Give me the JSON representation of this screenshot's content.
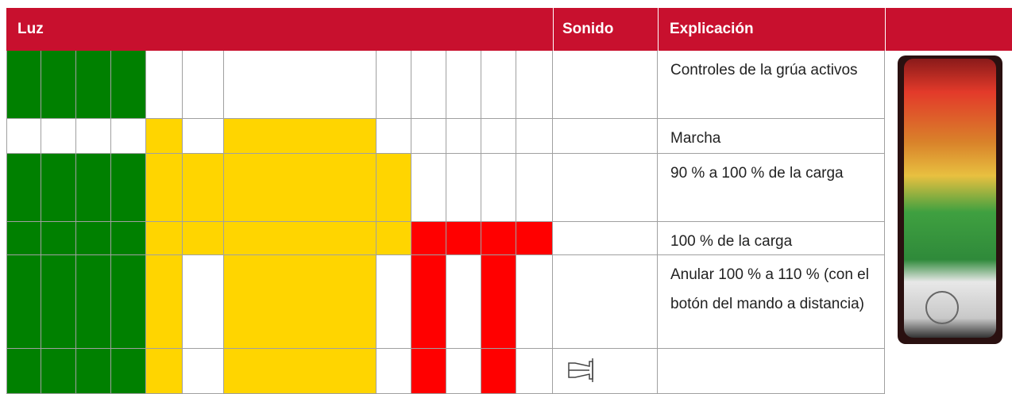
{
  "table": {
    "header": [
      "Luz",
      "Sonido",
      "Explicación"
    ],
    "rows": [
      {
        "lights": [
          "#008000",
          "#008000",
          "#008000",
          "#008000",
          "#ffffff",
          "#ffffff",
          "#ffffff",
          "#ffffff",
          "#ffffff",
          "#ffffff",
          "#ffffff",
          "#ffffff"
        ],
        "explanation": "Controles de la grúa activos"
      },
      {
        "lights": [
          "#ffffff",
          "#ffffff",
          "#ffffff",
          "#ffffff",
          "#ffd500",
          "#ffffff",
          "#ffd500",
          "#ffffff",
          "#ffffff",
          "#ffffff",
          "#ffffff",
          "#ffffff"
        ],
        "explanation": "Marcha"
      },
      {
        "lights": [
          "#008000",
          "#008000",
          "#008000",
          "#008000",
          "#ffd500",
          "#ffd500",
          "#ffd500",
          "#ffd500",
          "#ffffff",
          "#ffffff",
          "#ffffff",
          "#ffffff"
        ],
        "explanation": "90 % a 100 % de la carga"
      },
      {
        "lights": [
          "#008000",
          "#008000",
          "#008000",
          "#008000",
          "#ffd500",
          "#ffd500",
          "#ffd500",
          "#ffd500",
          "#ff0000",
          "#ff0000",
          "#ff0000",
          "#ff0000"
        ],
        "explanation": "100 % de la carga"
      },
      {
        "lights": [
          "#008000",
          "#008000",
          "#008000",
          "#008000",
          "#ffd500",
          "#ffffff",
          "#ffd500",
          "#ffffff",
          "#ff0000",
          "#ffffff",
          "#ff0000",
          "#ffffff"
        ],
        "explanation": "Anular 100 % a 110 % (con el botón del mando a distancia)"
      },
      {
        "lights": [
          "#008000",
          "#008000",
          "#008000",
          "#008000",
          "#ffd500",
          "#ffffff",
          "#ffd500",
          "#ffffff",
          "#ff0000",
          "#ffffff",
          "#ff0000",
          "#ffffff"
        ]
      }
    ]
  }
}
